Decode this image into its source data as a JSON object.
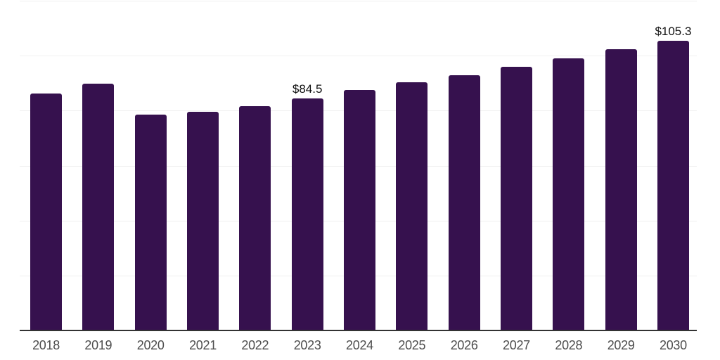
{
  "chart_data": {
    "type": "bar",
    "categories": [
      "2018",
      "2019",
      "2020",
      "2021",
      "2022",
      "2023",
      "2024",
      "2025",
      "2026",
      "2027",
      "2028",
      "2029",
      "2030"
    ],
    "values": [
      86.3,
      89.7,
      78.6,
      79.7,
      81.7,
      84.5,
      87.4,
      90.2,
      93.0,
      96.0,
      99.0,
      102.3,
      105.3
    ],
    "data_labels": [
      "",
      "",
      "",
      "",
      "",
      "$84.5",
      "",
      "",
      "",
      "",
      "",
      "",
      "$105.3"
    ],
    "title": "",
    "xlabel": "",
    "ylabel": "",
    "ylim": [
      0,
      120
    ],
    "grid_step": 20,
    "grid_visible": true,
    "legend_position": "none",
    "colors": {
      "bar": "#36114e",
      "axis_line": "#333333",
      "gridline": "#f0f0f0",
      "tick_label": "#4d4d4d",
      "data_label": "#111111"
    }
  }
}
